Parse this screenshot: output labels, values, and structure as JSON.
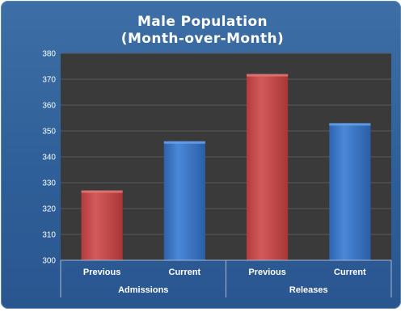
{
  "colors": {
    "previous": "#c94c4c",
    "current": "#3a78c8",
    "plot_bg": "#3a3a3a",
    "frame_bg": "#2f5f98"
  },
  "chart_data": {
    "type": "bar",
    "title_lines": [
      "Male Population",
      "(Month-over-Month)"
    ],
    "groups": [
      {
        "name": "Admissions",
        "bars": [
          {
            "label": "Previous",
            "value": 327
          },
          {
            "label": "Current",
            "value": 346
          }
        ]
      },
      {
        "name": "Releases",
        "bars": [
          {
            "label": "Previous",
            "value": 372
          },
          {
            "label": "Current",
            "value": 353
          }
        ]
      }
    ],
    "ylim": [
      300,
      380
    ],
    "yticks": [
      300,
      310,
      320,
      330,
      340,
      350,
      360,
      370,
      380
    ],
    "grid": true,
    "legend": "none"
  }
}
